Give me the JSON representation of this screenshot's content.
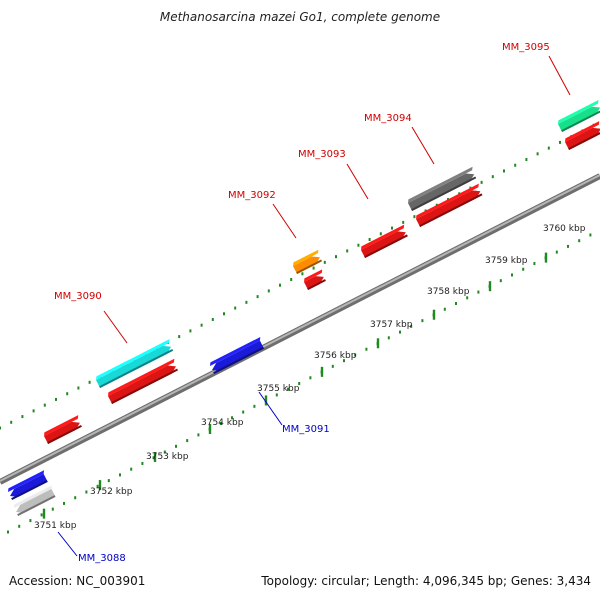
{
  "title": "Methanosarcina mazei Go1, complete genome",
  "footer": {
    "accession": "Accession: NC_003901",
    "summary": "Topology: circular; Length: 4,096,345 bp; Genes: 3,434"
  },
  "colors": {
    "backbone": "#8a8a8a",
    "ticks": "#1f8a1f",
    "label_forward": "#d00000",
    "label_reverse": "#0000c8"
  },
  "scale_labels": [
    "3751 kbp",
    "3752 kbp",
    "3753 kbp",
    "3754 kbp",
    "3755 kbp",
    "3756 kbp",
    "3757 kbp",
    "3758 kbp",
    "3759 kbp",
    "3760 kbp"
  ],
  "gene_labels": [
    {
      "text": "MM_3088",
      "strand": "reverse"
    },
    {
      "text": "MM_3090",
      "strand": "forward"
    },
    {
      "text": "MM_3091",
      "strand": "reverse"
    },
    {
      "text": "MM_3092",
      "strand": "forward"
    },
    {
      "text": "MM_3093",
      "strand": "forward"
    },
    {
      "text": "MM_3094",
      "strand": "forward"
    },
    {
      "text": "MM_3095",
      "strand": "forward"
    }
  ],
  "features": [
    {
      "color": "#dc1414",
      "strand": "forward"
    },
    {
      "color": "#1a1ad8",
      "strand": "reverse"
    },
    {
      "color": "#bdbdbd",
      "strand": "reverse"
    },
    {
      "color": "#18d8d8",
      "strand": "forward"
    },
    {
      "color": "#dc1414",
      "strand": "forward"
    },
    {
      "color": "#1a1ad8",
      "strand": "reverse"
    },
    {
      "color": "#ff8c00",
      "strand": "forward"
    },
    {
      "color": "#dc1414",
      "strand": "forward"
    },
    {
      "color": "#dc1414",
      "strand": "forward"
    },
    {
      "color": "#666666",
      "strand": "forward"
    },
    {
      "color": "#dc1414",
      "strand": "forward"
    },
    {
      "color": "#18e08a",
      "strand": "forward"
    },
    {
      "color": "#dc1414",
      "strand": "forward"
    }
  ]
}
